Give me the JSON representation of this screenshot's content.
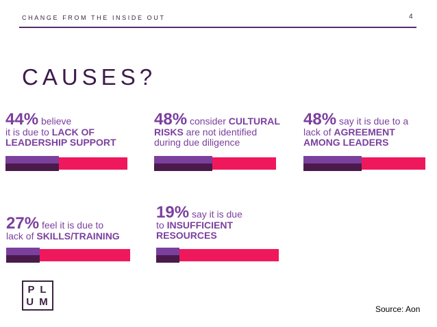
{
  "header": {
    "title": "CHANGE FROM THE INSIDE OUT",
    "page_number": "4"
  },
  "heading": "CAUSES?",
  "items": [
    {
      "percent": 44,
      "percent_label": "44%",
      "lines": [
        [
          {
            "text": "believe",
            "bold": false
          }
        ],
        [
          {
            "text": "it is due to ",
            "bold": false
          },
          {
            "text": "LACK OF",
            "bold": true
          }
        ],
        [
          {
            "text": "LEADERSHIP SUPPORT",
            "bold": true
          }
        ]
      ]
    },
    {
      "percent": 48,
      "percent_label": "48%",
      "lines": [
        [
          {
            "text": "consider ",
            "bold": false
          },
          {
            "text": "CULTURAL",
            "bold": true
          }
        ],
        [
          {
            "text": "RISKS",
            "bold": true
          },
          {
            "text": " are not identified",
            "bold": false
          }
        ],
        [
          {
            "text": "during due diligence",
            "bold": false
          }
        ]
      ]
    },
    {
      "percent": 48,
      "percent_label": "48%",
      "lines": [
        [
          {
            "text": "say it is due to a",
            "bold": false
          }
        ],
        [
          {
            "text": "lack of ",
            "bold": false
          },
          {
            "text": "AGREEMENT",
            "bold": true
          }
        ],
        [
          {
            "text": "AMONG LEADERS",
            "bold": true
          }
        ]
      ]
    },
    {
      "percent": 27,
      "percent_label": "27%",
      "lines": [
        [
          {
            "text": "feel it is due to",
            "bold": false
          }
        ],
        [
          {
            "text": "lack of ",
            "bold": false
          },
          {
            "text": "SKILLS/TRAINING",
            "bold": true
          }
        ]
      ]
    },
    {
      "percent": 19,
      "percent_label": "19%",
      "lines": [
        [
          {
            "text": "say it is due",
            "bold": false
          }
        ],
        [
          {
            "text": "to ",
            "bold": false
          },
          {
            "text": "INSUFFICIENT",
            "bold": true
          }
        ],
        [
          {
            "text": "RESOURCES",
            "bold": true
          }
        ]
      ]
    }
  ],
  "logo": {
    "row1": "P L",
    "row2": "U M"
  },
  "source": "Source: Aon"
}
